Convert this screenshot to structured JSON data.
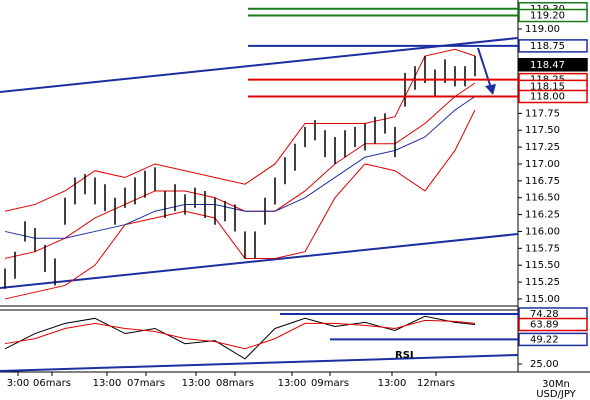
{
  "chart_data": {
    "type": "ohlc",
    "symbol": "USD/JPY",
    "timeframe": "30Mn",
    "xlim": [
      -0.5,
      51.3
    ],
    "ylim": [
      114.91,
      119.43
    ],
    "xticks": [
      {
        "value": 1.3,
        "label": "3:00"
      },
      {
        "value": 4.7,
        "label": "06mars"
      },
      {
        "value": 10.2,
        "label": "13:00"
      },
      {
        "value": 14.1,
        "label": "07mars"
      },
      {
        "value": 19.1,
        "label": "13:00"
      },
      {
        "value": 23,
        "label": "08mars"
      },
      {
        "value": 28.7,
        "label": "13:00"
      },
      {
        "value": 32.5,
        "label": "09mars"
      },
      {
        "value": 38.7,
        "label": "13:00"
      },
      {
        "value": 43.1,
        "label": "12mars"
      }
    ],
    "yticks": [
      {
        "value": 115,
        "label": "115.00"
      },
      {
        "value": 115.25,
        "label": "115.25"
      },
      {
        "value": 115.5,
        "label": "115.50"
      },
      {
        "value": 115.75,
        "label": "115.75"
      },
      {
        "value": 116,
        "label": "116.00"
      },
      {
        "value": 116.25,
        "label": "116.25"
      },
      {
        "value": 116.5,
        "label": "116.50"
      },
      {
        "value": 116.75,
        "label": "116.75"
      },
      {
        "value": 117,
        "label": "117.00"
      },
      {
        "value": 117.25,
        "label": "117.25"
      },
      {
        "value": 117.5,
        "label": "117.50"
      },
      {
        "value": 117.75,
        "label": "117.75"
      },
      {
        "value": 119,
        "label": "119.00"
      }
    ],
    "highs": [
      115.45,
      115.7,
      116.15,
      116.05,
      115.8,
      115.6,
      116.5,
      116.8,
      116.85,
      116.8,
      116.7,
      116.5,
      116.65,
      116.8,
      116.9,
      116.95,
      116.6,
      116.7,
      116.55,
      116.65,
      116.6,
      116.5,
      116.45,
      116.4,
      116.0,
      116.0,
      116.5,
      116.8,
      117.1,
      117.3,
      117.55,
      117.65,
      117.5,
      117.4,
      117.5,
      117.55,
      117.6,
      117.7,
      117.75,
      117.55,
      118.35,
      118.45,
      118.6,
      118.4,
      118.55,
      118.45,
      118.45,
      118.6
    ],
    "lows": [
      115.15,
      115.3,
      115.85,
      115.7,
      115.4,
      115.2,
      116.1,
      116.4,
      116.55,
      116.4,
      116.3,
      116.1,
      116.35,
      116.4,
      116.5,
      116.6,
      116.2,
      116.3,
      116.25,
      116.35,
      116.2,
      116.1,
      116.15,
      116.0,
      115.6,
      115.6,
      116.1,
      116.4,
      116.7,
      116.9,
      117.25,
      117.35,
      117.1,
      117.0,
      117.1,
      117.25,
      117.2,
      117.3,
      117.45,
      117.1,
      117.85,
      118.1,
      118.2,
      118.0,
      118.2,
      118.15,
      118.15,
      118.3
    ],
    "indicators": {
      "x": [
        0,
        3,
        6,
        9,
        12,
        15,
        18,
        21,
        24,
        27,
        30,
        33,
        36,
        39,
        42,
        45,
        47
      ],
      "series": [
        {
          "color": "#e00000",
          "values": [
            116.3,
            116.4,
            116.6,
            116.9,
            116.8,
            117.0,
            116.9,
            116.8,
            116.7,
            117.0,
            117.6,
            117.6,
            117.6,
            117.7,
            118.6,
            118.7,
            118.6
          ]
        },
        {
          "color": "#e00000",
          "values": [
            115.6,
            115.7,
            115.9,
            116.2,
            116.4,
            116.6,
            116.6,
            116.5,
            116.3,
            116.3,
            116.6,
            117.0,
            117.3,
            117.3,
            117.6,
            118.0,
            118.2
          ]
        },
        {
          "color": "#e00000",
          "values": [
            115.0,
            115.1,
            115.2,
            115.5,
            116.1,
            116.2,
            116.3,
            116.2,
            115.6,
            115.6,
            115.7,
            116.5,
            117.0,
            116.9,
            116.6,
            117.2,
            117.8
          ]
        },
        {
          "color": "#1c2fa0",
          "values": [
            116.0,
            115.9,
            115.9,
            116.0,
            116.1,
            116.3,
            116.4,
            116.4,
            116.3,
            116.3,
            116.5,
            116.8,
            117.1,
            117.2,
            117.4,
            117.8,
            118.0
          ]
        }
      ]
    },
    "levels": [
      {
        "value": 119.3,
        "label": "119.30",
        "color": "#1a7a1a",
        "line": true
      },
      {
        "value": 119.2,
        "label": "119.20",
        "color": "#1a7a1a",
        "line": true
      },
      {
        "value": 118.75,
        "label": "118.75",
        "color": "#1c2fa0",
        "line": true
      },
      {
        "value": 118.47,
        "label": "118.47",
        "color": "#000000",
        "line": false
      },
      {
        "value": 118.25,
        "label": "118.25",
        "color": "#e00000",
        "line": true
      },
      {
        "value": 118.15,
        "label": "118.15",
        "color": "#e00000",
        "line": false
      },
      {
        "value": 118,
        "label": "118.00",
        "color": "#e00000",
        "line": true
      }
    ],
    "rsi": {
      "label": "RSI",
      "ylim": [
        17.1,
        78.2
      ],
      "yticks": [
        {
          "value": 25,
          "label": "25.00"
        }
      ],
      "x": [
        0,
        3,
        6,
        9,
        12,
        15,
        18,
        21,
        24,
        27,
        30,
        33,
        36,
        39,
        42,
        45,
        47
      ],
      "series": [
        {
          "color": "#000000",
          "values": [
            40,
            55,
            65,
            70,
            55,
            60,
            45,
            48,
            30,
            60,
            70,
            62,
            66,
            58,
            72,
            66,
            63.89
          ]
        },
        {
          "color": "#e00000",
          "values": [
            45,
            50,
            60,
            65,
            60,
            57,
            50,
            47,
            40,
            50,
            65,
            65,
            63,
            60,
            68,
            67,
            65
          ]
        }
      ],
      "levels": [
        {
          "value": 74.28,
          "label": "74.28",
          "color": "#1c2fa0",
          "line": true
        },
        {
          "value": 63.89,
          "label": "63.89",
          "color": "#e00000",
          "line": false
        },
        {
          "value": 49.22,
          "label": "49.22",
          "color": "#1c2fa0",
          "line": true
        }
      ]
    }
  }
}
